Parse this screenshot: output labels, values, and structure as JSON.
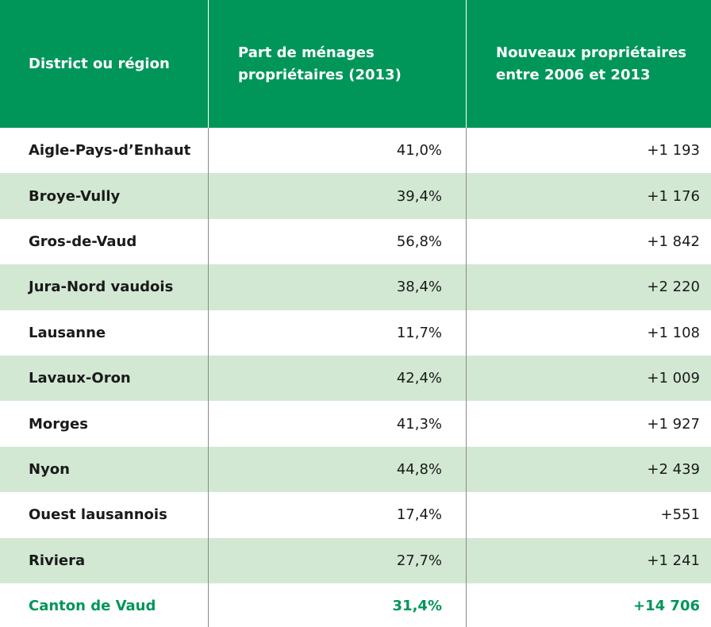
{
  "header": {
    "col1": "District ou région",
    "col2_line1": "Part de ménages",
    "col2_line2": "propriétaires (2013)",
    "col3_line1": "Nouveaux propriétaires",
    "col3_line2": "entre 2006 et 2013"
  },
  "rows": [
    {
      "name": "Aigle-Pays-d’Enhaut",
      "pct": "41,0%",
      "new": "+1 193"
    },
    {
      "name": "Broye-Vully",
      "pct": "39,4%",
      "new": "+1 176"
    },
    {
      "name": "Gros-de-Vaud",
      "pct": "56,8%",
      "new": "+1 842"
    },
    {
      "name": "Jura-Nord vaudois",
      "pct": "38,4%",
      "new": "+2 220"
    },
    {
      "name": "Lausanne",
      "pct": "11,7%",
      "new": "+1 108"
    },
    {
      "name": "Lavaux-Oron",
      "pct": "42,4%",
      "new": "+1 009"
    },
    {
      "name": "Morges",
      "pct": "41,3%",
      "new": "+1 927"
    },
    {
      "name": "Nyon",
      "pct": "44,8%",
      "new": "+2 439"
    },
    {
      "name": "Ouest lausannois",
      "pct": "17,4%",
      "new": "+551"
    },
    {
      "name": "Riviera",
      "pct": "27,7%",
      "new": "+1 241"
    }
  ],
  "total": {
    "name": "Canton de Vaud",
    "pct": "31,4%",
    "new": "+14 706"
  },
  "colors": {
    "header_bg": "#00965a",
    "alt_row_bg": "#d2e8d3",
    "total_text": "#00965a"
  }
}
